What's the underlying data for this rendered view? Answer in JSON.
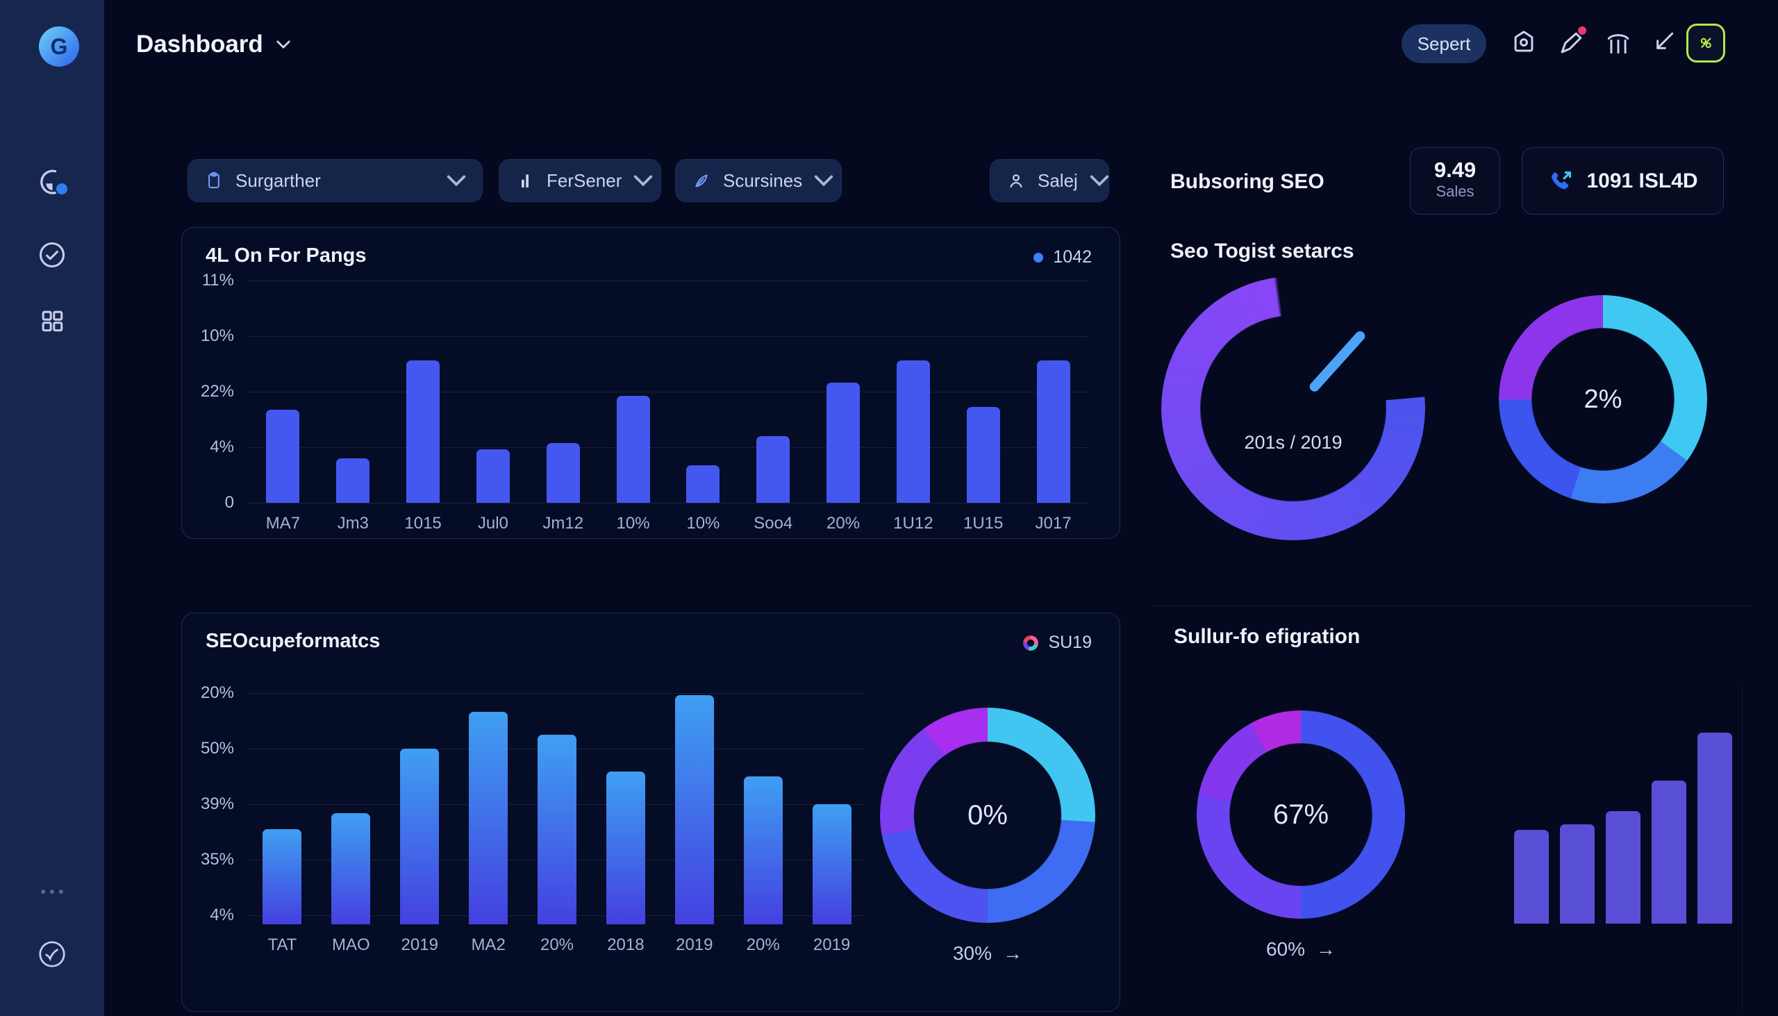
{
  "app": {
    "logo_letter": "G"
  },
  "header": {
    "title": "Dashboard",
    "export_label": "Sepert",
    "icon_names": [
      "tag-icon",
      "pen-notification-icon",
      "columns-icon",
      "trend-arrow-icon",
      "avatar-icon"
    ]
  },
  "toolbar": {
    "filters": [
      {
        "label": "Surgarther",
        "icon": "clipboard-icon"
      },
      {
        "label": "FerSener",
        "icon": "bar-chart-icon"
      },
      {
        "label": "Scursines",
        "icon": "pen-icon"
      }
    ],
    "sales_filter": {
      "label": "Salej",
      "icon": "person-icon"
    }
  },
  "right_header": {
    "title": "Bubsoring SEO",
    "stat_card": {
      "value": "9.49",
      "label": "Sales"
    },
    "phone_card": {
      "value": "1091 ISL4D",
      "icon": "phone-icon"
    }
  },
  "sidebar_icon_names": [
    "analytics-pie-icon",
    "check-circle-icon",
    "grid-icon",
    "ellipsis-icon",
    "circle-check-icon"
  ],
  "chart_data": [
    {
      "id": "on_for_pangs",
      "type": "bar",
      "title": "4L On For Pangs",
      "legend": "1042",
      "legend_color": "#3b82f6",
      "y_ticks": [
        "11%",
        "10%",
        "22%",
        "4%",
        "0"
      ],
      "categories": [
        "MA7",
        "Jm3",
        "1015",
        "Jul0",
        "Jm12",
        "10%",
        "10%",
        "Soo4",
        "20%",
        "1U12",
        "1U15",
        "J017"
      ],
      "values_pct": [
        42,
        20,
        64,
        24,
        27,
        48,
        17,
        30,
        54,
        64,
        43,
        64
      ],
      "bar_color": "#4458f0",
      "grid": true,
      "legend_position": "top-right"
    },
    {
      "id": "seo_cupeformatcs",
      "type": "bar",
      "title": "SEOcupeformatcs",
      "legend": "SU19",
      "y_ticks": [
        "20%",
        "50%",
        "39%",
        "35%",
        "4%"
      ],
      "categories": [
        "TAT",
        "MAO",
        "2019",
        "MA2",
        "20%",
        "2018",
        "2019",
        "20%",
        "2019"
      ],
      "values_pct": [
        41,
        48,
        76,
        92,
        82,
        66,
        99,
        64,
        52
      ],
      "bar_color_top": "#3f9ff2",
      "bar_color_bottom": "#4440e0",
      "grid": true,
      "legend_position": "top-right"
    },
    {
      "id": "donut_zero",
      "type": "donut",
      "center_label": "0%",
      "footer_label": "30%",
      "footer_arrow": "→",
      "segments": [
        {
          "color": "#41c6f2",
          "to": 26
        },
        {
          "color": "#3e6cf2",
          "to": 50
        },
        {
          "color": "#4c53f0",
          "to": 72
        },
        {
          "color": "#7b3df0",
          "to": 90
        },
        {
          "color": "#a82ef0",
          "to": 100
        }
      ]
    },
    {
      "id": "gauge_togist",
      "type": "gauge",
      "title": "Seo Togist setarcs",
      "label": "201s / 2019",
      "arc_color_start": "#4b54ee",
      "arc_color_end": "#8a46f6",
      "needle_color": "#4da3f7",
      "arc_span_pct": 74
    },
    {
      "id": "donut_two",
      "type": "donut",
      "center_label": "2%",
      "segments": [
        {
          "color": "#3fc9f2",
          "to": 35
        },
        {
          "color": "#3d7df2",
          "to": 55
        },
        {
          "color": "#3b55ee",
          "to": 75
        },
        {
          "color": "#8d35ea",
          "to": 100
        }
      ]
    },
    {
      "id": "donut_67",
      "type": "donut",
      "title": "Sullur-fo efigration",
      "center_label": "67%",
      "footer_label": "60%",
      "footer_arrow": "→",
      "segments": [
        {
          "color": "#4152ee",
          "to": 50
        },
        {
          "color": "#6a44f0",
          "to": 78
        },
        {
          "color": "#8438ee",
          "to": 92
        },
        {
          "color": "#b02ae4",
          "to": 100
        }
      ]
    },
    {
      "id": "mini_bars",
      "type": "bar",
      "values_pct": [
        49,
        52,
        59,
        75,
        100
      ],
      "bar_color": "#5a50d8",
      "grid": false
    }
  ]
}
